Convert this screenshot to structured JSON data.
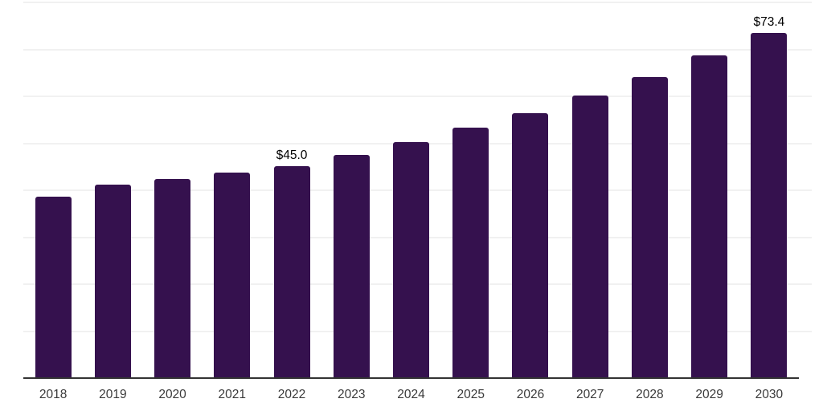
{
  "chart_data": {
    "type": "bar",
    "categories": [
      "2018",
      "2019",
      "2020",
      "2021",
      "2022",
      "2023",
      "2024",
      "2025",
      "2026",
      "2027",
      "2028",
      "2029",
      "2030"
    ],
    "values": [
      38.5,
      41.0,
      42.2,
      43.6,
      45.0,
      47.4,
      50.1,
      53.2,
      56.2,
      60.0,
      63.9,
      68.5,
      73.4
    ],
    "data_labels": {
      "2022": "$45.0",
      "2030": "$73.4"
    },
    "title": "",
    "xlabel": "",
    "ylabel": "",
    "ylim": [
      0,
      80
    ],
    "grid_step": 10,
    "grid": true,
    "legend": "none",
    "colors": {
      "bar": "#35114E",
      "axis": "#333333",
      "gridline": "#f1f1f1",
      "tick_label": "#3a3a3a",
      "data_label": "#000000",
      "background": "#ffffff"
    }
  }
}
